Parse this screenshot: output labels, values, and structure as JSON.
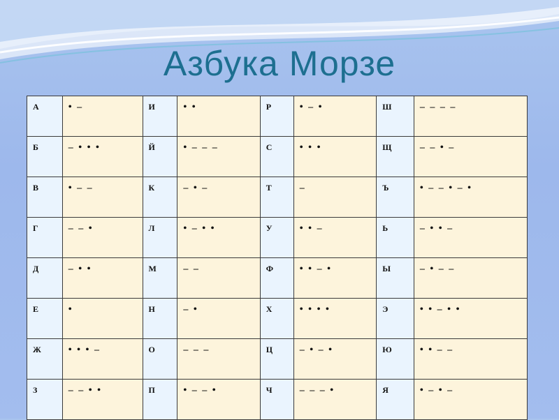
{
  "title": "Азбука Морзе",
  "rows": [
    [
      [
        "А",
        "• –"
      ],
      [
        "И",
        "• •"
      ],
      [
        "Р",
        "• – •"
      ],
      [
        "Ш",
        "– – – –"
      ]
    ],
    [
      [
        "Б",
        "– • • •"
      ],
      [
        "Й",
        "• – – –"
      ],
      [
        "С",
        "• • •"
      ],
      [
        "Щ",
        "– – • –"
      ]
    ],
    [
      [
        "В",
        "• – –"
      ],
      [
        "К",
        "– • –"
      ],
      [
        "Т",
        "–"
      ],
      [
        "Ъ",
        "• – – • – •"
      ]
    ],
    [
      [
        "Г",
        "– – •"
      ],
      [
        "Л",
        "• – • •"
      ],
      [
        "У",
        "• • –"
      ],
      [
        "Ь",
        "– • • –"
      ]
    ],
    [
      [
        "Д",
        "– • •"
      ],
      [
        "М",
        "– –"
      ],
      [
        "Ф",
        "• • – •"
      ],
      [
        "Ы",
        "– • – –"
      ]
    ],
    [
      [
        "Е",
        "•"
      ],
      [
        "Н",
        "– •"
      ],
      [
        "Х",
        "• • • •"
      ],
      [
        "Э",
        "• • – • •"
      ]
    ],
    [
      [
        "Ж",
        "• • • –"
      ],
      [
        "О",
        "– – –"
      ],
      [
        "Ц",
        "– • – •"
      ],
      [
        "Ю",
        "• • – –"
      ]
    ],
    [
      [
        "З",
        "– – • •"
      ],
      [
        "П",
        "• – – •"
      ],
      [
        "Ч",
        "– – – •"
      ],
      [
        "Я",
        "• – • –"
      ]
    ]
  ],
  "colors": {
    "title": "#1d6f90",
    "letter_cell": "#eaf4fe",
    "code_cell": "#fdf4dc"
  }
}
